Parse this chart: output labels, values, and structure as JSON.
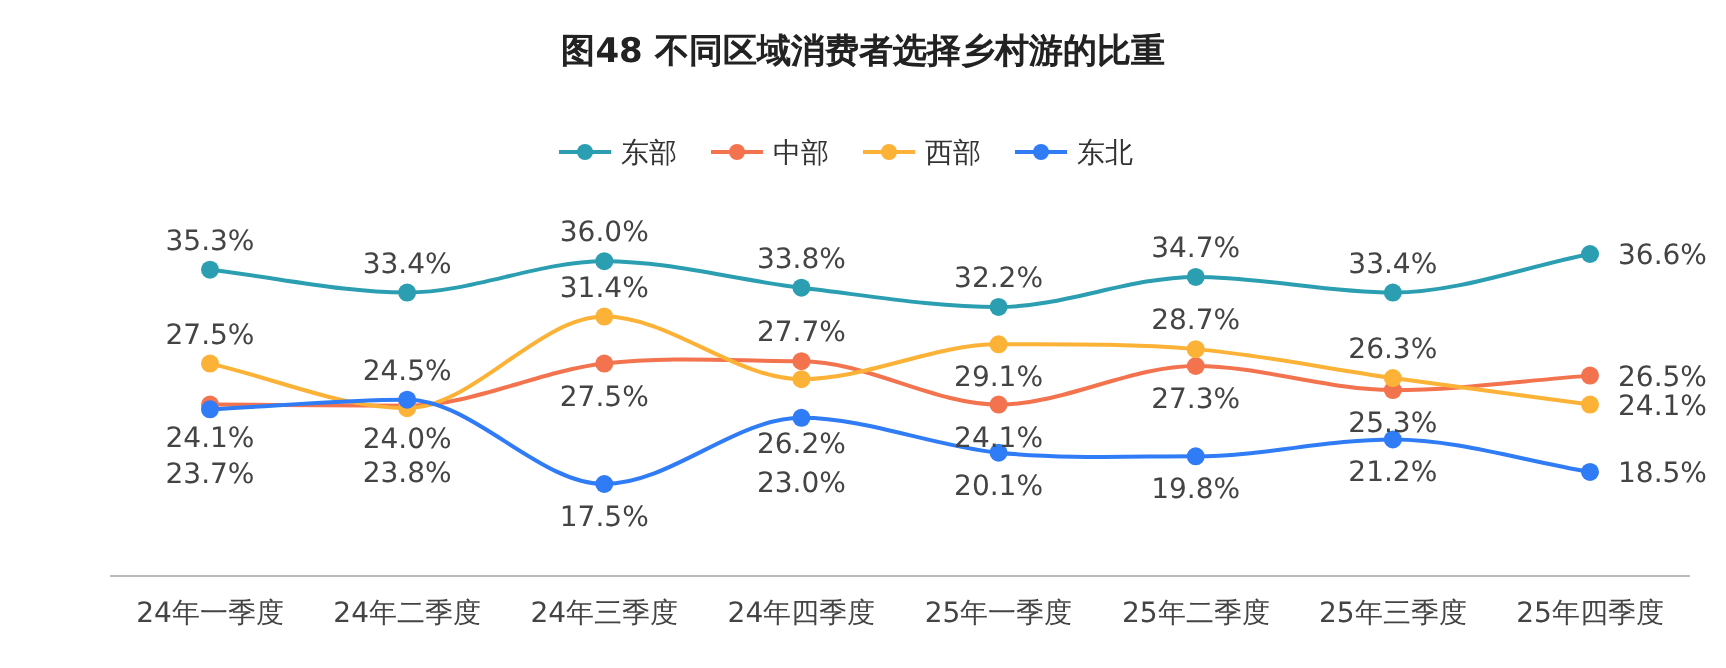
{
  "chart_data": {
    "type": "line",
    "title": "图48 不同区域消费者选择乡村游的比重",
    "categories": [
      "24年一季度",
      "24年二季度",
      "24年三季度",
      "24年四季度",
      "25年一季度",
      "25年二季度",
      "25年三季度",
      "25年四季度"
    ],
    "series": [
      {
        "name": "东部",
        "color": "#2b9fb1",
        "values": [
          35.3,
          33.4,
          36.0,
          33.8,
          32.2,
          34.7,
          33.4,
          36.6
        ],
        "value_labels": [
          "35.3%",
          "33.4%",
          "36.0%",
          "33.8%",
          "32.2%",
          "34.7%",
          "33.4%",
          "36.6%"
        ]
      },
      {
        "name": "中部",
        "color": "#f4734f",
        "values": [
          24.1,
          24.0,
          27.5,
          27.7,
          24.1,
          27.3,
          25.3,
          26.5
        ],
        "value_labels": [
          "24.1%",
          "24.0%",
          "27.5%",
          "27.7%",
          "24.1%",
          "27.3%",
          "25.3%",
          "26.5%"
        ]
      },
      {
        "name": "西部",
        "color": "#fbb236",
        "values": [
          27.5,
          23.8,
          31.4,
          26.2,
          29.1,
          28.7,
          26.3,
          24.1
        ],
        "value_labels": [
          "27.5%",
          "23.8%",
          "31.4%",
          "26.2%",
          "29.1%",
          "28.7%",
          "26.3%",
          "24.1%"
        ]
      },
      {
        "name": "东北",
        "color": "#2f7cf6",
        "values": [
          23.7,
          24.5,
          17.5,
          23.0,
          20.1,
          19.8,
          21.2,
          18.5
        ],
        "value_labels": [
          "23.7%",
          "24.5%",
          "17.5%",
          "23.0%",
          "20.1%",
          "19.8%",
          "21.2%",
          "18.5%"
        ]
      }
    ],
    "legend": "top",
    "marker": "circle",
    "line_style": "solid"
  }
}
